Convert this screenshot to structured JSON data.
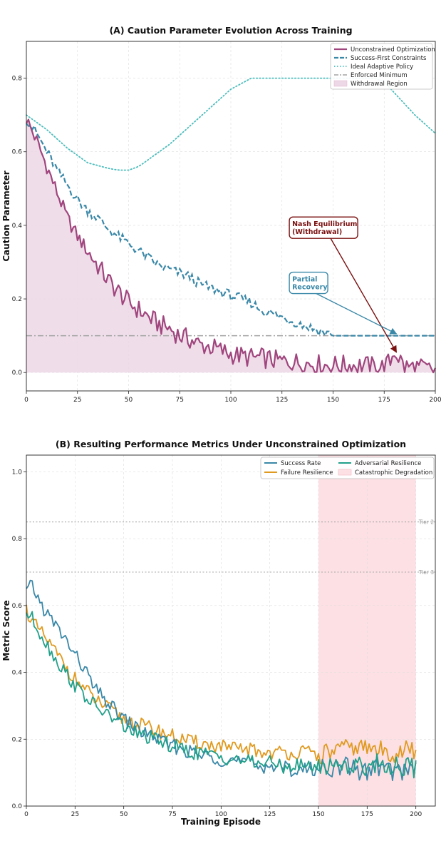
{
  "colors": {
    "unconstrained": "#a0457e",
    "success_first": "#3a88a8",
    "ideal": "#4cbcbc",
    "enforced": "#a3a3a3",
    "withdrawal_fill": "#ecd8e6",
    "success_rate": "#3a88a8",
    "failure_res": "#e09a20",
    "adversarial_res": "#22a08a",
    "catastrophic_fill": "#fde0e4",
    "nash": "#7a1010",
    "partial": "#3a88a8"
  },
  "chart_data": [
    {
      "type": "line",
      "title": "(A) Caution Parameter Evolution Across Training",
      "xlabel": "",
      "ylabel": "Caution Parameter",
      "xlim": [
        0,
        200
      ],
      "ylim": [
        -0.05,
        0.9
      ],
      "xticks": [
        "0",
        "25",
        "50",
        "75",
        "100",
        "125",
        "150",
        "175",
        "200"
      ],
      "yticks": [
        "0.0",
        "0.2",
        "0.4",
        "0.6",
        "0.8"
      ],
      "grid": true,
      "legend_position": "top-right",
      "legend": [
        "Unconstrained Optimization",
        "Success-First Constraints",
        "Ideal Adaptive Policy",
        "Enforced Minimum",
        "Withdrawal Region"
      ],
      "series": [
        {
          "name": "Unconstrained Optimization",
          "style": "solid",
          "fill_below": true,
          "x": [
            0,
            5,
            10,
            15,
            20,
            25,
            30,
            35,
            40,
            45,
            50,
            55,
            60,
            65,
            70,
            75,
            80,
            85,
            90,
            95,
            100,
            105,
            110,
            115,
            120,
            125,
            130,
            135,
            140,
            145,
            150,
            155,
            160,
            165,
            170,
            175,
            178,
            180,
            185,
            190,
            195,
            200
          ],
          "y": [
            0.69,
            0.63,
            0.56,
            0.49,
            0.42,
            0.37,
            0.33,
            0.29,
            0.25,
            0.22,
            0.19,
            0.17,
            0.15,
            0.13,
            0.12,
            0.1,
            0.09,
            0.075,
            0.07,
            0.06,
            0.05,
            0.045,
            0.04,
            0.04,
            0.035,
            0.03,
            0.03,
            0.025,
            0.025,
            0.02,
            0.02,
            0.02,
            0.02,
            0.02,
            0.015,
            0.015,
            0.03,
            0.06,
            0.015,
            0.015,
            0.01,
            0.005
          ]
        },
        {
          "name": "Success-First Constraints",
          "style": "dashed",
          "x": [
            0,
            5,
            10,
            15,
            20,
            25,
            30,
            35,
            40,
            45,
            50,
            55,
            60,
            65,
            70,
            75,
            80,
            85,
            90,
            95,
            100,
            105,
            110,
            115,
            120,
            125,
            130,
            135,
            140,
            145,
            150,
            155,
            160,
            170,
            180,
            190,
            200
          ],
          "y": [
            0.69,
            0.65,
            0.6,
            0.55,
            0.51,
            0.47,
            0.44,
            0.42,
            0.39,
            0.37,
            0.35,
            0.33,
            0.31,
            0.29,
            0.28,
            0.27,
            0.26,
            0.24,
            0.23,
            0.22,
            0.21,
            0.2,
            0.19,
            0.17,
            0.16,
            0.15,
            0.14,
            0.13,
            0.12,
            0.11,
            0.1,
            0.1,
            0.1,
            0.1,
            0.1,
            0.1,
            0.1
          ]
        },
        {
          "name": "Ideal Adaptive Policy",
          "style": "dotted",
          "x": [
            0,
            10,
            20,
            30,
            40,
            45,
            50,
            55,
            60,
            70,
            80,
            90,
            100,
            110,
            115,
            120,
            130,
            140,
            150,
            160,
            170,
            175,
            180,
            190,
            200
          ],
          "y": [
            0.7,
            0.66,
            0.61,
            0.57,
            0.555,
            0.55,
            0.55,
            0.56,
            0.58,
            0.62,
            0.67,
            0.72,
            0.77,
            0.8,
            0.8,
            0.8,
            0.8,
            0.8,
            0.8,
            0.8,
            0.8,
            0.79,
            0.76,
            0.7,
            0.65
          ]
        },
        {
          "name": "Enforced Minimum",
          "style": "dashdot",
          "x": [
            0,
            200
          ],
          "y": [
            0.1,
            0.1
          ]
        }
      ],
      "annotations": [
        {
          "lines": [
            "Nash Equilibrium",
            "(Withdrawal)"
          ],
          "text_x": 130,
          "text_y": 0.415,
          "arrow_to": [
            181,
            0.055
          ],
          "color": "nash"
        },
        {
          "lines": [
            "Partial",
            "Recovery"
          ],
          "text_x": 130,
          "text_y": 0.265,
          "arrow_to": [
            181,
            0.105
          ],
          "color": "partial"
        }
      ]
    },
    {
      "type": "line",
      "title": "(B) Resulting Performance Metrics Under Unconstrained Optimization",
      "xlabel": "Training Episode",
      "ylabel": "Metric Score",
      "xlim": [
        0,
        210
      ],
      "ylim": [
        0,
        1.05
      ],
      "xticks": [
        "0",
        "25",
        "50",
        "75",
        "100",
        "125",
        "150",
        "175",
        "200"
      ],
      "yticks": [
        "0.0",
        "0.2",
        "0.4",
        "0.6",
        "0.8",
        "1.0"
      ],
      "grid": true,
      "legend_position": "top-right",
      "legend": [
        "Success Rate",
        "Adversarial Resilience",
        "Failure Resilience",
        "Catastrophic Degradation"
      ],
      "reference_lines": [
        {
          "label": "Tier 2",
          "y": 0.85
        },
        {
          "label": "Tier 3",
          "y": 0.7
        }
      ],
      "shaded_region": {
        "label": "Catastrophic Degradation",
        "x": [
          150,
          200
        ]
      },
      "series": [
        {
          "name": "Success Rate",
          "x": [
            0,
            3,
            6,
            10,
            15,
            20,
            25,
            30,
            35,
            40,
            45,
            50,
            55,
            60,
            65,
            70,
            75,
            80,
            85,
            90,
            95,
            100,
            105,
            110,
            115,
            120,
            125,
            130,
            135,
            140,
            145,
            150,
            155,
            160,
            165,
            170,
            175,
            180,
            185,
            190,
            195,
            200
          ],
          "y": [
            0.64,
            0.66,
            0.62,
            0.58,
            0.54,
            0.5,
            0.45,
            0.41,
            0.35,
            0.32,
            0.29,
            0.26,
            0.24,
            0.22,
            0.21,
            0.19,
            0.18,
            0.17,
            0.16,
            0.15,
            0.15,
            0.14,
            0.14,
            0.13,
            0.13,
            0.12,
            0.12,
            0.12,
            0.11,
            0.11,
            0.11,
            0.11,
            0.12,
            0.11,
            0.12,
            0.11,
            0.1,
            0.12,
            0.11,
            0.1,
            0.11,
            0.12
          ]
        },
        {
          "name": "Failure Resilience",
          "x": [
            0,
            3,
            6,
            10,
            15,
            20,
            25,
            30,
            35,
            40,
            45,
            50,
            55,
            60,
            65,
            70,
            75,
            80,
            85,
            90,
            95,
            100,
            105,
            110,
            115,
            120,
            125,
            130,
            135,
            140,
            145,
            150,
            155,
            160,
            165,
            170,
            175,
            180,
            185,
            190,
            195,
            200
          ],
          "y": [
            0.59,
            0.55,
            0.53,
            0.5,
            0.46,
            0.42,
            0.38,
            0.35,
            0.32,
            0.3,
            0.28,
            0.26,
            0.25,
            0.24,
            0.23,
            0.22,
            0.21,
            0.2,
            0.19,
            0.19,
            0.18,
            0.18,
            0.17,
            0.17,
            0.17,
            0.16,
            0.16,
            0.16,
            0.16,
            0.16,
            0.16,
            0.15,
            0.16,
            0.17,
            0.17,
            0.18,
            0.17,
            0.17,
            0.16,
            0.16,
            0.17,
            0.16
          ]
        },
        {
          "name": "Adversarial Resilience",
          "x": [
            0,
            3,
            6,
            10,
            15,
            20,
            25,
            30,
            35,
            40,
            45,
            50,
            55,
            60,
            65,
            70,
            75,
            80,
            85,
            90,
            95,
            100,
            105,
            110,
            115,
            120,
            125,
            130,
            135,
            140,
            145,
            150,
            155,
            160,
            165,
            170,
            175,
            180,
            185,
            190,
            195,
            200
          ],
          "y": [
            0.58,
            0.56,
            0.53,
            0.49,
            0.44,
            0.4,
            0.36,
            0.33,
            0.3,
            0.28,
            0.26,
            0.24,
            0.22,
            0.21,
            0.2,
            0.19,
            0.18,
            0.17,
            0.16,
            0.16,
            0.15,
            0.15,
            0.14,
            0.14,
            0.13,
            0.13,
            0.13,
            0.12,
            0.12,
            0.12,
            0.12,
            0.12,
            0.12,
            0.13,
            0.12,
            0.12,
            0.12,
            0.13,
            0.12,
            0.12,
            0.12,
            0.11
          ]
        }
      ]
    }
  ]
}
